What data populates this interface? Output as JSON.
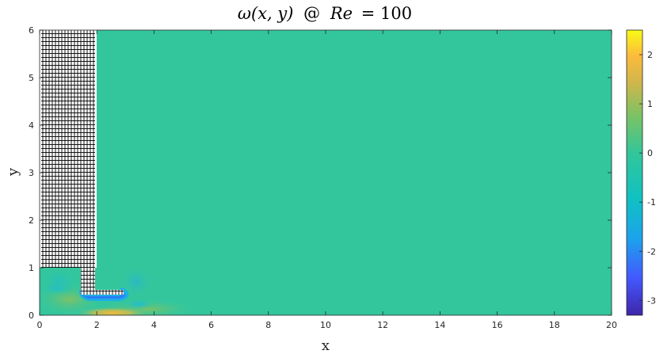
{
  "chart_data": {
    "type": "heatmap",
    "title": "ω(x, y) @ Re = 100",
    "title_parts": {
      "lhs": "ω(x, y)",
      "at": "@",
      "re": "Re",
      "eq": "= 100"
    },
    "xlabel": "x",
    "ylabel": "y",
    "xlim": [
      0,
      20
    ],
    "ylim": [
      0,
      6
    ],
    "xticks": [
      0,
      2,
      4,
      6,
      8,
      10,
      12,
      14,
      16,
      18,
      20
    ],
    "yticks": [
      0,
      1,
      2,
      3,
      4,
      5,
      6
    ],
    "colorbar": {
      "colormap": "parula",
      "clim": [
        -3.3,
        2.5
      ],
      "ticks": [
        2,
        1,
        0,
        -1,
        -2,
        -3
      ],
      "colors": [
        "#3e26a8",
        "#4358ff",
        "#1ca3ec",
        "#10c1c1",
        "#33c699",
        "#7cc264",
        "#d2b64b",
        "#fcbb3d",
        "#f9fb15"
      ]
    },
    "background_value": 0,
    "background_color": "#33c69d",
    "hatched_region": {
      "x": [
        0,
        2
      ],
      "y_top": 6,
      "y_bottom_outer": 1,
      "notch": {
        "x": [
          1.4,
          3.0
        ],
        "y": [
          0.45,
          0.6
        ]
      }
    },
    "features": [
      {
        "name": "negative vorticity along step edge",
        "x": [
          1.2,
          3.1
        ],
        "y": [
          0.35,
          0.6
        ],
        "value": -1.2
      },
      {
        "name": "positive vorticity near bottom wall",
        "x": [
          0.5,
          4.2
        ],
        "y": [
          0,
          0.3
        ],
        "value": 1.2
      },
      {
        "name": "weak negative eddy",
        "x": [
          2.8,
          3.4
        ],
        "y": [
          0.6,
          0.95
        ],
        "value": -0.4
      }
    ]
  }
}
